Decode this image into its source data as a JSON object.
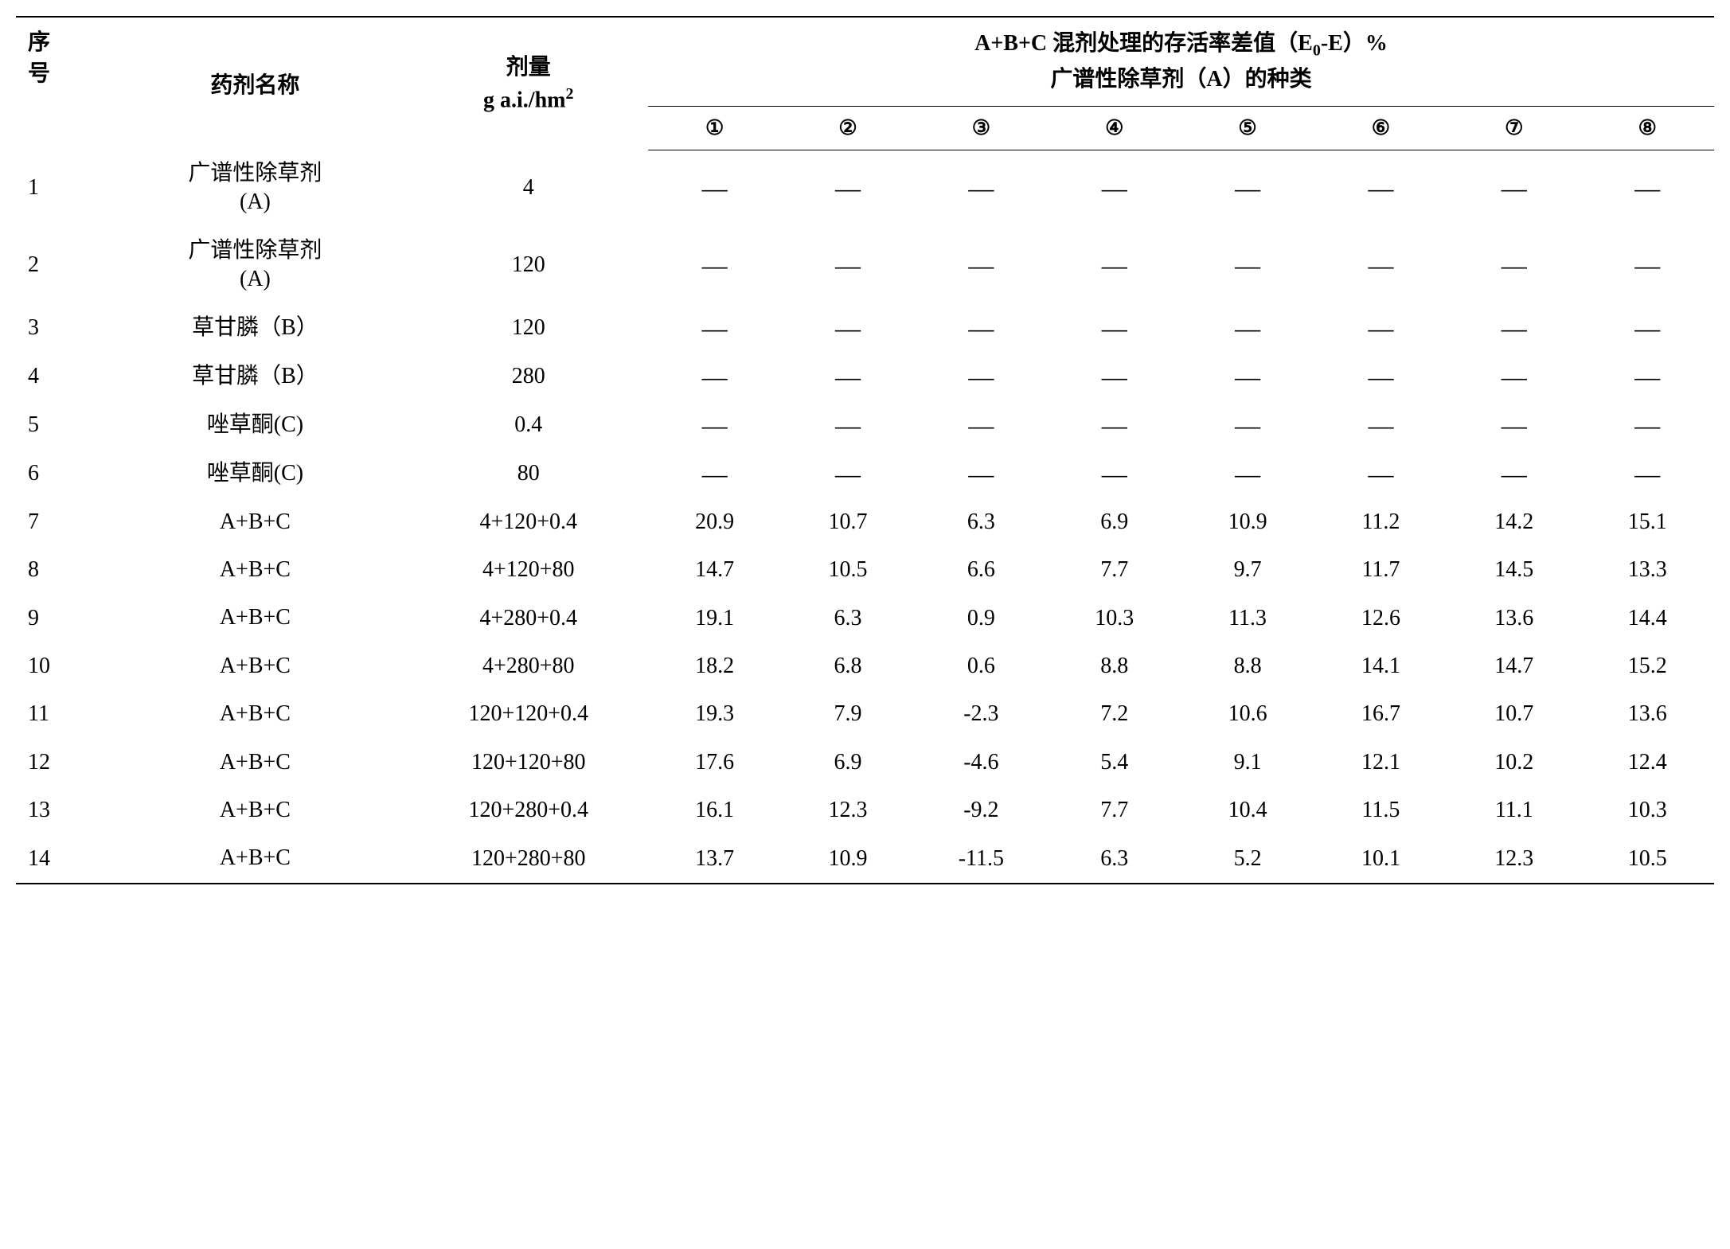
{
  "headers": {
    "seq_label": "序\n号",
    "name_label": "药剂名称",
    "dose_line1": "剂量",
    "dose_line2_prefix": "g a.i./hm",
    "dose_line2_sup": "2",
    "group_line1_prefix": "A+B+C 混剂处理的存活率差值（E",
    "group_line1_sub": "0",
    "group_line1_suffix": "-E）%",
    "group_line2": "广谱性除草剂（A）的种类",
    "col_nums": [
      "①",
      "②",
      "③",
      "④",
      "⑤",
      "⑥",
      "⑦",
      "⑧"
    ]
  },
  "rows": [
    {
      "seq": "1",
      "name": "广谱性除草剂\n(A)",
      "dose": "4",
      "vals": [
        "—",
        "—",
        "—",
        "—",
        "—",
        "—",
        "—",
        "—"
      ],
      "dash": true
    },
    {
      "seq": "2",
      "name": "广谱性除草剂\n(A)",
      "dose": "120",
      "vals": [
        "—",
        "—",
        "—",
        "—",
        "—",
        "—",
        "—",
        "—"
      ],
      "dash": true
    },
    {
      "seq": "3",
      "name": "草甘膦（B）",
      "dose": "120",
      "vals": [
        "—",
        "—",
        "—",
        "—",
        "—",
        "—",
        "—",
        "—"
      ],
      "dash": true
    },
    {
      "seq": "4",
      "name": "草甘膦（B）",
      "dose": "280",
      "vals": [
        "—",
        "—",
        "—",
        "—",
        "—",
        "—",
        "—",
        "—"
      ],
      "dash": true
    },
    {
      "seq": "5",
      "name": "唑草酮(C)",
      "dose": "0.4",
      "vals": [
        "—",
        "—",
        "—",
        "—",
        "—",
        "—",
        "—",
        "—"
      ],
      "dash": true
    },
    {
      "seq": "6",
      "name": "唑草酮(C)",
      "dose": "80",
      "vals": [
        "—",
        "—",
        "—",
        "—",
        "—",
        "—",
        "—",
        "—"
      ],
      "dash": true
    },
    {
      "seq": "7",
      "name": "A+B+C",
      "dose": "4+120+0.4",
      "vals": [
        "20.9",
        "10.7",
        "6.3",
        "6.9",
        "10.9",
        "11.2",
        "14.2",
        "15.1"
      ],
      "dash": false
    },
    {
      "seq": "8",
      "name": "A+B+C",
      "dose": "4+120+80",
      "vals": [
        "14.7",
        "10.5",
        "6.6",
        "7.7",
        "9.7",
        "11.7",
        "14.5",
        "13.3"
      ],
      "dash": false
    },
    {
      "seq": "9",
      "name": "A+B+C",
      "dose": "4+280+0.4",
      "vals": [
        "19.1",
        "6.3",
        "0.9",
        "10.3",
        "11.3",
        "12.6",
        "13.6",
        "14.4"
      ],
      "dash": false
    },
    {
      "seq": "10",
      "name": "A+B+C",
      "dose": "4+280+80",
      "vals": [
        "18.2",
        "6.8",
        "0.6",
        "8.8",
        "8.8",
        "14.1",
        "14.7",
        "15.2"
      ],
      "dash": false
    },
    {
      "seq": "11",
      "name": "A+B+C",
      "dose": "120+120+0.4",
      "vals": [
        "19.3",
        "7.9",
        "-2.3",
        "7.2",
        "10.6",
        "16.7",
        "10.7",
        "13.6"
      ],
      "dash": false
    },
    {
      "seq": "12",
      "name": "A+B+C",
      "dose": "120+120+80",
      "vals": [
        "17.6",
        "6.9",
        "-4.6",
        "5.4",
        "9.1",
        "12.1",
        "10.2",
        "12.4"
      ],
      "dash": false
    },
    {
      "seq": "13",
      "name": "A+B+C",
      "dose": "120+280+0.4",
      "vals": [
        "16.1",
        "12.3",
        "-9.2",
        "7.7",
        "10.4",
        "11.5",
        "11.1",
        "10.3"
      ],
      "dash": false
    },
    {
      "seq": "14",
      "name": "A+B+C",
      "dose": "120+280+80",
      "vals": [
        "13.7",
        "10.9",
        "-11.5",
        "6.3",
        "5.2",
        "10.1",
        "12.3",
        "10.5"
      ],
      "dash": false
    }
  ],
  "style": {
    "background_color": "#ffffff",
    "text_color": "#000000",
    "border_color": "#000000",
    "base_font_size": 28,
    "font_family": "serif"
  }
}
